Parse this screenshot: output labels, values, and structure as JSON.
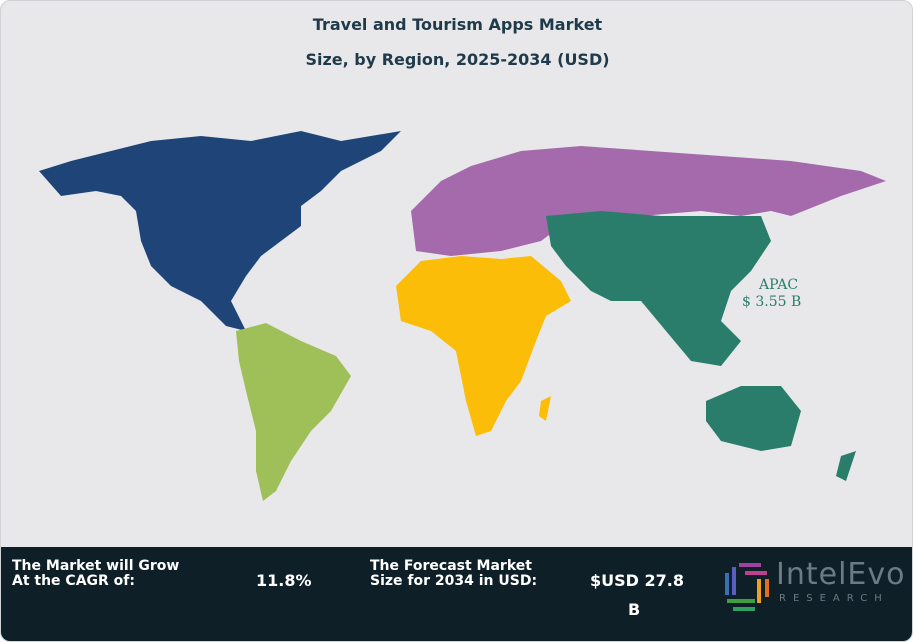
{
  "title_line1": "Travel and Tourism Apps Market",
  "title_line2": "Size, by Region, 2025-2034 (USD)",
  "regions": [
    {
      "name": "North America",
      "color": "#1f4578"
    },
    {
      "name": "Latin America",
      "color": "#9fbf58"
    },
    {
      "name": "Europe",
      "color": "#a46aab"
    },
    {
      "name": "Middle East & Africa",
      "color": "#fbbd08"
    },
    {
      "name": "APAC",
      "color": "#2a7d6b",
      "label": "APAC",
      "value_label": "$ 3.55 B"
    }
  ],
  "footer": {
    "cagr_label": "The Market will Grow At the CAGR of:",
    "cagr_value": "11.8%",
    "forecast_label": "The Forecast Market Size for 2034 in USD:",
    "forecast_value_line1": "$USD 27.8",
    "forecast_value_line2": "B",
    "logo_name": "IntelEvo",
    "logo_sub": "RESEARCH"
  }
}
